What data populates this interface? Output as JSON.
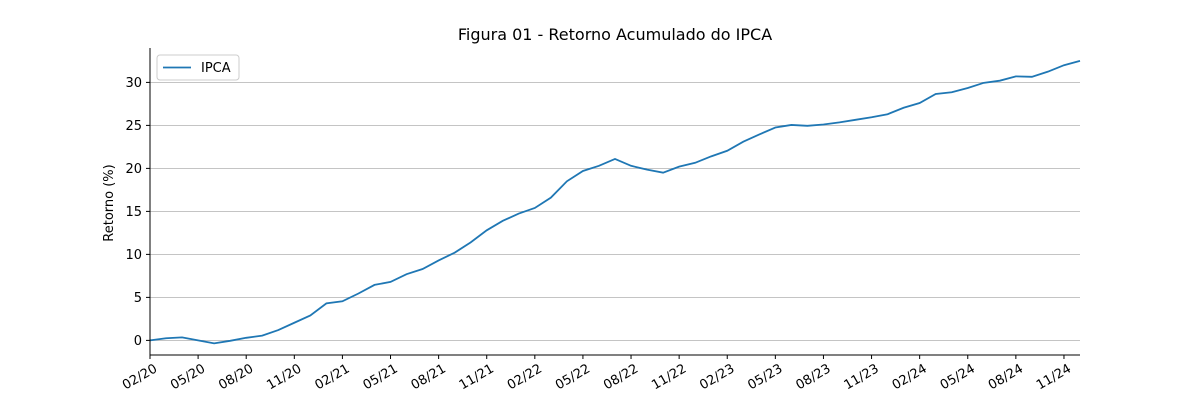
{
  "chart_data": {
    "type": "line",
    "title": "Figura 01 - Retorno Acumulado do IPCA",
    "xlabel": "",
    "ylabel": "Retorno (%)",
    "ylim": [
      -1.7,
      34
    ],
    "yticks": [
      "0",
      "5",
      "10",
      "15",
      "20",
      "25",
      "30"
    ],
    "xtick_labels": [
      "02/20",
      "05/20",
      "08/20",
      "11/20",
      "02/21",
      "05/21",
      "08/21",
      "11/21",
      "02/22",
      "05/22",
      "08/22",
      "11/22",
      "02/23",
      "05/23",
      "08/23",
      "11/23",
      "02/24",
      "05/24",
      "08/24",
      "11/24"
    ],
    "grid": "y",
    "legend": "top-left",
    "color": "#1f77b4",
    "series": [
      {
        "name": "IPCA",
        "x": [
          "02/20",
          "03/20",
          "04/20",
          "05/20",
          "06/20",
          "07/20",
          "08/20",
          "09/20",
          "10/20",
          "11/20",
          "12/20",
          "01/21",
          "02/21",
          "03/21",
          "04/21",
          "05/21",
          "06/21",
          "07/21",
          "08/21",
          "09/21",
          "10/21",
          "11/21",
          "12/21",
          "01/22",
          "02/22",
          "03/22",
          "04/22",
          "05/22",
          "06/22",
          "07/22",
          "08/22",
          "09/22",
          "10/22",
          "11/22",
          "12/22",
          "01/23",
          "02/23",
          "03/23",
          "04/23",
          "05/23",
          "06/23",
          "07/23",
          "08/23",
          "09/23",
          "10/23",
          "11/23",
          "12/23",
          "01/24",
          "02/24",
          "03/24",
          "04/24",
          "05/24",
          "06/24",
          "07/24",
          "08/24",
          "09/24",
          "10/24",
          "11/24",
          "12/24"
        ],
        "values": [
          0.0,
          0.25,
          0.35,
          0.0,
          -0.35,
          -0.05,
          0.3,
          0.55,
          1.2,
          2.05,
          2.9,
          4.3,
          4.55,
          5.45,
          6.45,
          6.8,
          7.7,
          8.3,
          9.3,
          10.2,
          11.4,
          12.8,
          13.9,
          14.75,
          15.4,
          16.6,
          18.5,
          19.7,
          20.3,
          21.1,
          20.3,
          19.85,
          19.5,
          20.2,
          20.65,
          21.4,
          22.05,
          23.1,
          23.95,
          24.75,
          25.05,
          24.95,
          25.1,
          25.35,
          25.65,
          25.95,
          26.3,
          27.05,
          27.6,
          28.65,
          28.85,
          29.35,
          29.95,
          30.2,
          30.7,
          30.65,
          31.25,
          32.0,
          32.5
        ]
      }
    ]
  }
}
